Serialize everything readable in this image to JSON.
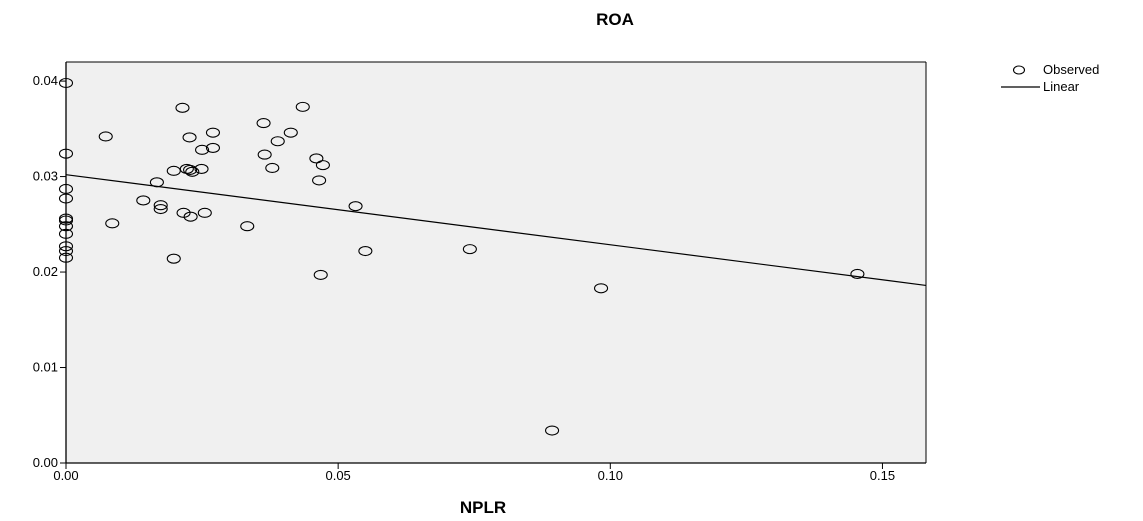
{
  "chart_data": {
    "type": "scatter",
    "title": "ROA",
    "xlabel": "NPLR",
    "ylabel": "",
    "xlim": [
      0.0,
      0.158
    ],
    "ylim": [
      0.0,
      0.042
    ],
    "x_ticks": [
      0.0,
      0.05,
      0.1,
      0.15
    ],
    "x_tick_labels": [
      "0.00",
      "0.05",
      "0.10",
      "0.15"
    ],
    "y_ticks": [
      0.0,
      0.01,
      0.02,
      0.03,
      0.04
    ],
    "y_tick_labels": [
      "0.00",
      "0.01",
      "0.02",
      "0.03",
      "0.04"
    ],
    "grid": false,
    "plot_background": "#f0f0f0",
    "legend_position": "top-right",
    "series": [
      {
        "name": "Observed",
        "kind": "points",
        "marker": "open-circle",
        "points": [
          [
            0.0,
            0.0398
          ],
          [
            0.0,
            0.0324
          ],
          [
            0.0,
            0.0287
          ],
          [
            0.0,
            0.0277
          ],
          [
            0.0,
            0.0256
          ],
          [
            0.0,
            0.0254
          ],
          [
            0.0,
            0.0248
          ],
          [
            0.0,
            0.024
          ],
          [
            0.0,
            0.0227
          ],
          [
            0.0,
            0.0222
          ],
          [
            0.0,
            0.0215
          ],
          [
            0.0073,
            0.0342
          ],
          [
            0.0085,
            0.0251
          ],
          [
            0.0142,
            0.0275
          ],
          [
            0.0167,
            0.0294
          ],
          [
            0.0174,
            0.027
          ],
          [
            0.0174,
            0.0266
          ],
          [
            0.0198,
            0.0306
          ],
          [
            0.0198,
            0.0214
          ],
          [
            0.0214,
            0.0372
          ],
          [
            0.0216,
            0.0262
          ],
          [
            0.0222,
            0.0308
          ],
          [
            0.0227,
            0.0341
          ],
          [
            0.0228,
            0.0307
          ],
          [
            0.0229,
            0.0258
          ],
          [
            0.0232,
            0.0305
          ],
          [
            0.0249,
            0.0308
          ],
          [
            0.025,
            0.0328
          ],
          [
            0.0255,
            0.0262
          ],
          [
            0.027,
            0.0346
          ],
          [
            0.027,
            0.033
          ],
          [
            0.0333,
            0.0248
          ],
          [
            0.0363,
            0.0356
          ],
          [
            0.0365,
            0.0323
          ],
          [
            0.0379,
            0.0309
          ],
          [
            0.0389,
            0.0337
          ],
          [
            0.0413,
            0.0346
          ],
          [
            0.0435,
            0.0373
          ],
          [
            0.046,
            0.0319
          ],
          [
            0.0465,
            0.0296
          ],
          [
            0.0468,
            0.0197
          ],
          [
            0.0472,
            0.0312
          ],
          [
            0.0532,
            0.0269
          ],
          [
            0.055,
            0.0222
          ],
          [
            0.0742,
            0.0224
          ],
          [
            0.0893,
            0.0034
          ],
          [
            0.0983,
            0.0183
          ],
          [
            0.1454,
            0.0198
          ]
        ]
      },
      {
        "name": "Linear",
        "kind": "line",
        "points": [
          [
            0.0,
            0.0302
          ],
          [
            0.158,
            0.0186
          ]
        ]
      }
    ]
  }
}
